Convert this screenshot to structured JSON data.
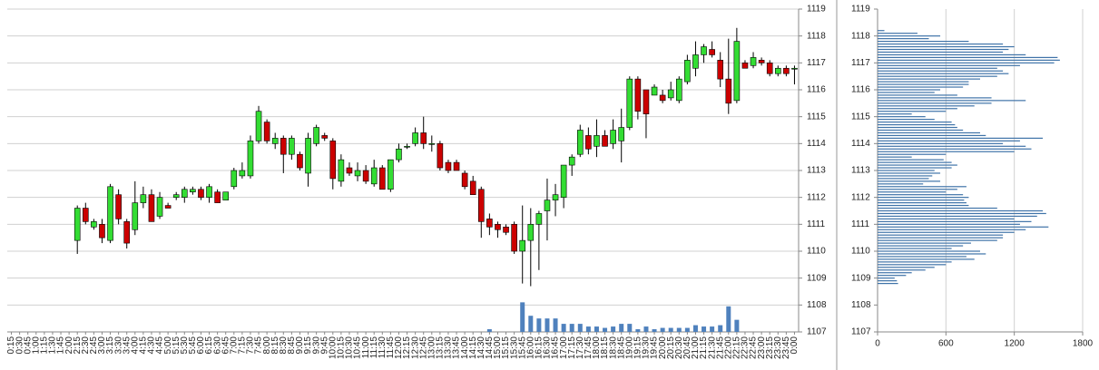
{
  "chart_data": [
    {
      "type": "candlestick",
      "categories": [
        "0:15",
        "0:30",
        "0:45",
        "1:00",
        "1:15",
        "1:30",
        "1:45",
        "2:00",
        "2:15",
        "2:30",
        "2:45",
        "3:00",
        "3:15",
        "3:30",
        "3:45",
        "4:00",
        "4:15",
        "4:30",
        "4:45",
        "5:00",
        "5:15",
        "5:30",
        "5:45",
        "6:00",
        "6:15",
        "6:30",
        "6:45",
        "7:00",
        "7:15",
        "7:30",
        "7:45",
        "8:00",
        "8:15",
        "8:30",
        "8:45",
        "9:00",
        "9:15",
        "9:30",
        "9:45",
        "10:00",
        "10:15",
        "10:30",
        "10:45",
        "11:00",
        "11:15",
        "11:30",
        "11:45",
        "12:00",
        "12:15",
        "12:30",
        "12:45",
        "13:00",
        "13:15",
        "13:30",
        "13:45",
        "14:00",
        "14:15",
        "14:30",
        "14:45",
        "15:00",
        "15:15",
        "15:30",
        "15:45",
        "16:00",
        "16:15",
        "16:30",
        "16:45",
        "17:00",
        "17:15",
        "17:30",
        "17:45",
        "18:00",
        "18:15",
        "18:30",
        "18:45",
        "19:00",
        "19:15",
        "19:30",
        "19:45",
        "20:00",
        "20:15",
        "20:30",
        "20:45",
        "21:00",
        "21:15",
        "21:30",
        "21:45",
        "22:00",
        "22:15",
        "22:30",
        "22:45",
        "23:00",
        "23:15",
        "23:30",
        "23:45",
        "0:00"
      ],
      "open": [
        null,
        null,
        null,
        null,
        null,
        null,
        null,
        null,
        1110.4,
        1111.6,
        1110.9,
        1111.0,
        1110.4,
        1112.1,
        1111.1,
        1110.8,
        1111.8,
        1112.1,
        1111.3,
        1111.7,
        1112.0,
        1112.0,
        1112.2,
        1112.3,
        1112.0,
        1112.2,
        1111.9,
        1112.4,
        1112.8,
        1112.8,
        1114.1,
        1114.8,
        1114.0,
        1114.2,
        1113.6,
        1113.6,
        1112.9,
        1114.0,
        1114.3,
        1114.1,
        1112.6,
        1113.1,
        1112.8,
        1113.0,
        1112.5,
        1113.1,
        1112.3,
        1113.4,
        1113.9,
        1114.0,
        1114.4,
        1114.0,
        1114.0,
        1113.3,
        1113.3,
        1112.9,
        1112.6,
        1112.3,
        1111.2,
        1111.0,
        1110.9,
        1111.0,
        1110.0,
        1110.4,
        1111.0,
        1111.5,
        1111.9,
        1112.0,
        1113.2,
        1113.6,
        1114.3,
        1113.9,
        1114.3,
        1114.0,
        1114.1,
        1114.6,
        1116.4,
        1116.0,
        1115.8,
        1115.8,
        1115.7,
        1115.6,
        1116.3,
        1116.8,
        1117.3,
        1117.5,
        1117.1,
        1116.4,
        1115.6,
        1117.0,
        1116.9,
        1117.1,
        1117.0,
        1116.6,
        1116.8,
        1116.8
      ],
      "high": [
        null,
        null,
        null,
        null,
        null,
        null,
        null,
        null,
        1111.7,
        1111.8,
        1111.2,
        1111.2,
        1112.5,
        1112.3,
        1111.2,
        1112.6,
        1112.4,
        1112.3,
        1112.2,
        1111.8,
        1112.2,
        1112.4,
        1112.4,
        1112.4,
        1112.5,
        1112.3,
        1112.2,
        1113.1,
        1113.3,
        1114.3,
        1115.4,
        1114.9,
        1114.4,
        1114.3,
        1114.3,
        1113.7,
        1114.4,
        1114.7,
        1114.4,
        1114.2,
        1113.6,
        1113.3,
        1113.3,
        1113.2,
        1113.4,
        1113.2,
        1113.4,
        1114.0,
        1114.0,
        1114.6,
        1115.0,
        1114.3,
        1114.1,
        1113.4,
        1113.4,
        1113.0,
        1112.8,
        1112.4,
        1111.4,
        1111.1,
        1111.0,
        1111.1,
        1111.7,
        1111.6,
        1111.5,
        1112.7,
        1112.5,
        1113.2,
        1113.6,
        1114.7,
        1114.6,
        1114.9,
        1114.5,
        1114.9,
        1115.3,
        1116.5,
        1116.5,
        1116.0,
        1116.2,
        1116.0,
        1116.3,
        1116.5,
        1117.3,
        1117.8,
        1117.7,
        1117.8,
        1117.4,
        1117.9,
        1118.3,
        1117.1,
        1117.4,
        1117.2,
        1117.1,
        1116.9,
        1116.9,
        1116.9
      ],
      "low": [
        null,
        null,
        null,
        null,
        null,
        null,
        null,
        null,
        1109.9,
        1111.0,
        1110.8,
        1110.3,
        1110.3,
        1111.0,
        1110.1,
        1110.6,
        1111.6,
        1111.1,
        1111.2,
        1111.6,
        1111.9,
        1111.8,
        1112.1,
        1111.9,
        1111.8,
        1111.8,
        1111.9,
        1112.3,
        1112.7,
        1112.7,
        1114.0,
        1114.0,
        1113.8,
        1112.9,
        1113.4,
        1113.0,
        1112.4,
        1113.9,
        1114.1,
        1112.3,
        1112.4,
        1112.8,
        1112.6,
        1112.5,
        1112.4,
        1112.3,
        1112.2,
        1113.3,
        1113.8,
        1113.9,
        1113.8,
        1113.7,
        1113.0,
        1112.9,
        1113.0,
        1112.3,
        1112.1,
        1110.5,
        1110.6,
        1110.5,
        1110.6,
        1109.9,
        1108.8,
        1108.7,
        1109.3,
        1110.4,
        1111.3,
        1111.6,
        1112.8,
        1113.5,
        1113.6,
        1113.5,
        1113.9,
        1113.8,
        1113.3,
        1114.5,
        1114.9,
        1114.2,
        1115.8,
        1115.5,
        1115.6,
        1115.5,
        1116.2,
        1116.5,
        1117.0,
        1117.2,
        1116.1,
        1115.1,
        1115.5,
        1116.8,
        1116.8,
        1116.9,
        1116.5,
        1116.5,
        1116.5,
        1116.2
      ],
      "close": [
        null,
        null,
        null,
        null,
        null,
        null,
        null,
        null,
        1111.6,
        1111.1,
        1111.1,
        1110.5,
        1112.4,
        1111.2,
        1110.3,
        1111.8,
        1112.1,
        1111.1,
        1112.0,
        1111.6,
        1112.1,
        1112.3,
        1112.3,
        1112.0,
        1112.4,
        1111.8,
        1112.2,
        1113.0,
        1113.0,
        1114.1,
        1115.2,
        1114.1,
        1114.2,
        1113.6,
        1114.2,
        1113.1,
        1114.2,
        1114.6,
        1114.2,
        1112.7,
        1113.4,
        1112.9,
        1113.0,
        1112.6,
        1113.1,
        1112.3,
        1113.4,
        1113.8,
        1113.9,
        1114.4,
        1114.0,
        1114.0,
        1113.1,
        1113.0,
        1113.0,
        1112.4,
        1112.1,
        1111.1,
        1110.9,
        1110.8,
        1110.7,
        1110.0,
        1110.4,
        1111.0,
        1111.4,
        1111.9,
        1112.1,
        1113.2,
        1113.5,
        1114.5,
        1113.8,
        1114.3,
        1113.9,
        1114.5,
        1114.6,
        1116.4,
        1115.2,
        1115.1,
        1116.1,
        1115.6,
        1116.0,
        1116.4,
        1117.1,
        1117.3,
        1117.6,
        1117.3,
        1116.4,
        1115.5,
        1117.8,
        1116.8,
        1117.2,
        1117.0,
        1116.6,
        1116.8,
        1116.6,
        1116.8
      ],
      "volume": [
        null,
        null,
        null,
        null,
        null,
        null,
        null,
        null,
        null,
        null,
        null,
        null,
        null,
        null,
        null,
        null,
        null,
        null,
        null,
        null,
        null,
        null,
        null,
        null,
        null,
        null,
        null,
        null,
        null,
        null,
        null,
        null,
        null,
        null,
        null,
        null,
        null,
        null,
        null,
        null,
        null,
        null,
        null,
        null,
        null,
        null,
        null,
        null,
        null,
        null,
        null,
        null,
        null,
        null,
        null,
        null,
        null,
        null,
        0.1,
        null,
        null,
        null,
        1.1,
        0.6,
        0.5,
        0.5,
        0.5,
        0.3,
        0.3,
        0.3,
        0.2,
        0.2,
        0.15,
        0.2,
        0.3,
        0.3,
        0.1,
        0.2,
        0.1,
        0.15,
        0.15,
        0.15,
        0.15,
        0.25,
        0.2,
        0.2,
        0.25,
        0.95,
        0.45,
        null,
        null,
        null,
        null,
        null,
        null,
        null
      ],
      "up_color": "#33dd33",
      "down_color": "#cc0000",
      "volume_color": "#4f81bd",
      "ylim": [
        1107,
        1119
      ],
      "yticks": [
        1107,
        1108,
        1109,
        1110,
        1111,
        1112,
        1113,
        1114,
        1115,
        1116,
        1117,
        1118,
        1119
      ],
      "grid": true
    },
    {
      "type": "barh",
      "y": [
        1108.8,
        1108.9,
        1109.0,
        1109.1,
        1109.2,
        1109.3,
        1109.4,
        1109.5,
        1109.6,
        1109.7,
        1109.8,
        1109.9,
        1110.0,
        1110.1,
        1110.2,
        1110.3,
        1110.4,
        1110.5,
        1110.6,
        1110.7,
        1110.8,
        1110.9,
        1111.0,
        1111.1,
        1111.2,
        1111.3,
        1111.4,
        1111.5,
        1111.6,
        1111.7,
        1111.8,
        1111.9,
        1112.0,
        1112.1,
        1112.2,
        1112.3,
        1112.4,
        1112.5,
        1112.6,
        1112.7,
        1112.8,
        1112.9,
        1113.0,
        1113.1,
        1113.2,
        1113.3,
        1113.4,
        1113.5,
        1113.6,
        1113.7,
        1113.8,
        1113.9,
        1114.0,
        1114.1,
        1114.2,
        1114.3,
        1114.4,
        1114.5,
        1114.6,
        1114.7,
        1114.8,
        1114.9,
        1115.0,
        1115.1,
        1115.2,
        1115.3,
        1115.4,
        1115.5,
        1115.6,
        1115.7,
        1115.8,
        1115.9,
        1116.0,
        1116.1,
        1116.2,
        1116.3,
        1116.4,
        1116.5,
        1116.6,
        1116.7,
        1116.8,
        1116.9,
        1117.0,
        1117.1,
        1117.2,
        1117.3,
        1117.4,
        1117.5,
        1117.6,
        1117.7,
        1117.8,
        1117.9,
        1118.0,
        1118.1,
        1118.2
      ],
      "values": [
        180,
        170,
        150,
        250,
        300,
        420,
        500,
        600,
        650,
        850,
        780,
        950,
        900,
        650,
        750,
        820,
        1050,
        1100,
        1100,
        1200,
        1300,
        1500,
        1250,
        1350,
        1200,
        1400,
        1480,
        1450,
        1050,
        800,
        780,
        760,
        800,
        750,
        600,
        700,
        780,
        400,
        550,
        450,
        480,
        550,
        500,
        650,
        700,
        650,
        580,
        300,
        600,
        1200,
        1350,
        1300,
        1100,
        1250,
        1450,
        950,
        900,
        750,
        700,
        680,
        650,
        500,
        420,
        300,
        600,
        700,
        850,
        1000,
        1300,
        1000,
        700,
        500,
        550,
        750,
        800,
        800,
        900,
        1050,
        1150,
        1100,
        1050,
        1250,
        1550,
        1600,
        1580,
        1300,
        1100,
        1150,
        1200,
        1100,
        800,
        450,
        550,
        350,
        60
      ],
      "color": "#3f73a8",
      "xlim": [
        0,
        1800
      ],
      "xticks": [
        0,
        600,
        1200,
        1800
      ],
      "ylim": [
        1107,
        1119
      ],
      "yticks": [
        1107,
        1108,
        1109,
        1110,
        1111,
        1112,
        1113,
        1114,
        1115,
        1116,
        1117,
        1118,
        1119
      ],
      "grid": true
    }
  ]
}
